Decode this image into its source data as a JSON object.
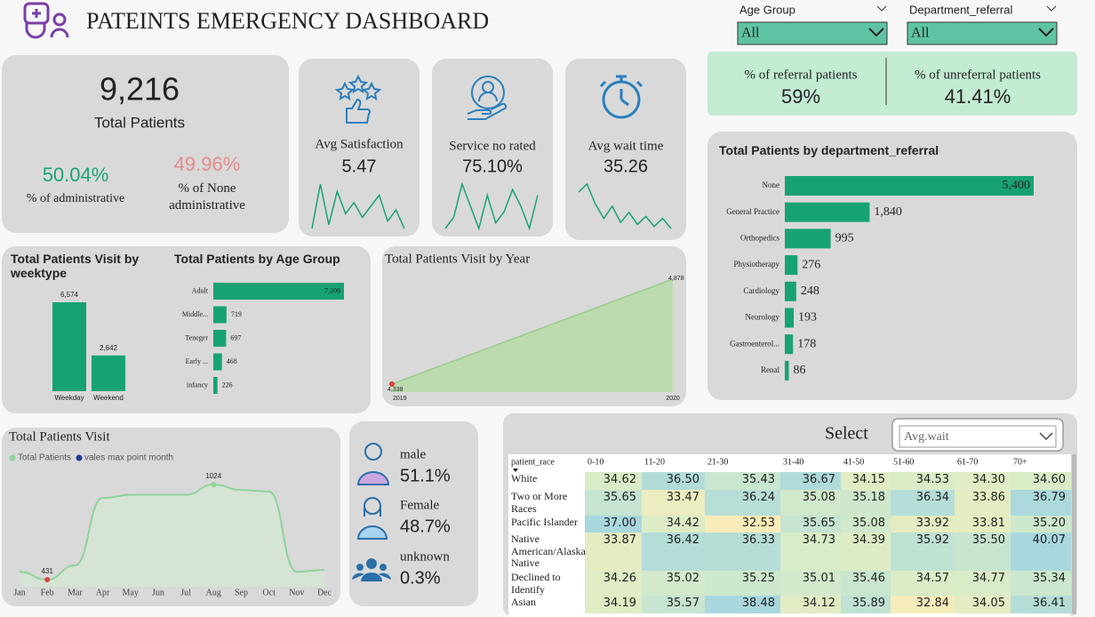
{
  "header": {
    "title": "PATEINTS EMERGENCY DASHBOARD"
  },
  "filters": [
    {
      "label": "Age Group",
      "value": "All"
    },
    {
      "label": "Department_referral",
      "value": "All"
    }
  ],
  "referral": [
    {
      "label": "% of referral patients",
      "value": "59%"
    },
    {
      "label": "% of unreferral patients",
      "value": "41.41%"
    }
  ],
  "total_patients": {
    "value": "9,216",
    "label": "Total Patients"
  },
  "administrative": [
    {
      "value": "50.04%",
      "label": "% of administrative"
    },
    {
      "value": "49.96%",
      "label": "% of None administrative"
    }
  ],
  "cards": [
    {
      "label": "Avg Satisfaction",
      "value": "5.47",
      "trend": [
        4.9,
        6.1,
        5.0,
        5.9,
        5.3,
        5.6,
        5.2,
        5.5,
        5.8,
        5.1,
        5.4,
        4.9
      ]
    },
    {
      "label": "Service no rated",
      "value": "75.10%",
      "trend": [
        72,
        74,
        80,
        76,
        72,
        78,
        73,
        75,
        79,
        76,
        72,
        78
      ]
    },
    {
      "label": "Avg wait time",
      "value": "35.26",
      "trend": [
        36.2,
        36.6,
        35.6,
        34.9,
        35.5,
        34.7,
        35.2,
        34.6,
        35.0,
        34.5,
        34.9,
        34.4
      ]
    }
  ],
  "gender": [
    {
      "label": "male",
      "value": "51.1%"
    },
    {
      "label": "Female",
      "value": "48.7%"
    },
    {
      "label": "unknown",
      "value": "0.3%"
    }
  ],
  "heatmap": {
    "selector_label": "Select",
    "selector_value": "Avg.wait",
    "columns": [
      "patient_race",
      "0-10",
      "11-20",
      "21-30",
      "31-40",
      "41-50",
      "51-60",
      "61-70",
      "70+"
    ],
    "rows": [
      {
        "label": "White",
        "values": [
          "34.62",
          "36.50",
          "35.43",
          "36.67",
          "34.15",
          "34.53",
          "34.30",
          "34.60"
        ]
      },
      {
        "label": "Two or More Races",
        "values": [
          "35.65",
          "33.47",
          "36.24",
          "35.08",
          "35.18",
          "36.34",
          "33.86",
          "36.79"
        ]
      },
      {
        "label": "Pacific Islander",
        "values": [
          "37.00",
          "34.42",
          "32.53",
          "35.65",
          "35.08",
          "33.92",
          "33.81",
          "35.20"
        ]
      },
      {
        "label": "Native American/Alaska Native",
        "values": [
          "33.87",
          "36.42",
          "36.33",
          "34.73",
          "34.39",
          "35.92",
          "35.50",
          "40.07"
        ]
      },
      {
        "label": "Declined to Identify",
        "values": [
          "34.26",
          "35.02",
          "35.25",
          "35.01",
          "35.46",
          "34.57",
          "34.77",
          "35.34"
        ]
      },
      {
        "label": "Asian",
        "values": [
          "34.19",
          "35.57",
          "38.48",
          "34.12",
          "35.89",
          "32.84",
          "34.05",
          "36.41"
        ]
      }
    ]
  },
  "chart_data": [
    {
      "type": "bar",
      "title": "Total Patients Visit by weektype",
      "categories": [
        "Weekday",
        "Weekend"
      ],
      "values": [
        6574,
        2642
      ],
      "value_labels": [
        "6,574",
        "2,642"
      ],
      "color": "#17a275"
    },
    {
      "type": "hbar",
      "title": "Total Patients by Age Group",
      "categories": [
        "Adult",
        "Middle...",
        "Teneger",
        "Early ...",
        "infancy"
      ],
      "values": [
        7106,
        719,
        697,
        468,
        226
      ],
      "value_labels": [
        "7,106",
        "719",
        "697",
        "468",
        "226"
      ],
      "color": "#17a275"
    },
    {
      "type": "area",
      "title": "Total Patients Visit by Year",
      "x": [
        2019,
        2020
      ],
      "values": [
        4338,
        4878
      ],
      "value_labels": [
        "4,338",
        "4,878"
      ],
      "color": "#b8dcaa"
    },
    {
      "type": "hbar",
      "title": "Total Patients by department_referral",
      "categories": [
        "None",
        "General Practice",
        "Orthopedics",
        "Physiotherapy",
        "Cardiology",
        "Neurology",
        "Gastroenterol...",
        "Renal"
      ],
      "values": [
        5400,
        1840,
        995,
        276,
        248,
        193,
        178,
        86
      ],
      "value_labels": [
        "5,400",
        "1,840",
        "995",
        "276",
        "248",
        "193",
        "178",
        "86"
      ],
      "color": "#17a275"
    },
    {
      "type": "line",
      "title": "Total Patients Visit",
      "categories": [
        "Jan",
        "Feb",
        "Mar",
        "Apr",
        "May",
        "Jun",
        "Jul",
        "Aug",
        "Sep",
        "Oct",
        "Nov",
        "Dec"
      ],
      "series": [
        {
          "name": "Total Patients",
          "color": "#8fd39c",
          "values": [
            480,
            431,
            520,
            940,
            960,
            960,
            960,
            1024,
            990,
            980,
            480,
            491
          ]
        },
        {
          "name": "vales max point month",
          "color": "#1f3c99",
          "values": [
            null,
            null,
            null,
            null,
            null,
            null,
            null,
            1024,
            null,
            null,
            null,
            null
          ]
        }
      ]
    }
  ]
}
